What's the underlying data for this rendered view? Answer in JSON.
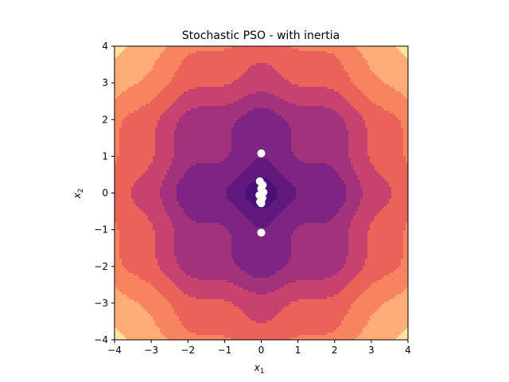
{
  "chart_data": {
    "type": "contour",
    "title": "Stochastic PSO - with inertia",
    "xlabel_base": "x",
    "xlabel_sub": "1",
    "ylabel_base": "x",
    "ylabel_sub": "2",
    "xlim": [
      -4,
      4
    ],
    "ylim": [
      -4,
      4
    ],
    "xticks": [
      -4,
      -3,
      -2,
      -1,
      0,
      1,
      2,
      3,
      4
    ],
    "yticks": [
      -4,
      -3,
      -2,
      -1,
      0,
      1,
      2,
      3,
      4
    ],
    "grid": false,
    "colormap": "magma",
    "contour_colors": [
      "#4a1078",
      "#601a7d",
      "#7e2482",
      "#a2337b",
      "#c8426f",
      "#ea6258",
      "#f7835f",
      "#fdac75",
      "#fee3a2"
    ],
    "particle_color": "#ffffff",
    "particles": [
      {
        "x": 0.0,
        "y": 1.08
      },
      {
        "x": 0.0,
        "y": -1.08
      },
      {
        "x": -0.04,
        "y": 0.32
      },
      {
        "x": 0.04,
        "y": 0.22
      },
      {
        "x": 0.0,
        "y": 0.12
      },
      {
        "x": 0.06,
        "y": 0.02
      },
      {
        "x": -0.05,
        "y": -0.06
      },
      {
        "x": 0.03,
        "y": -0.14
      },
      {
        "x": -0.03,
        "y": -0.24
      },
      {
        "x": 0.0,
        "y": -0.28
      }
    ]
  }
}
